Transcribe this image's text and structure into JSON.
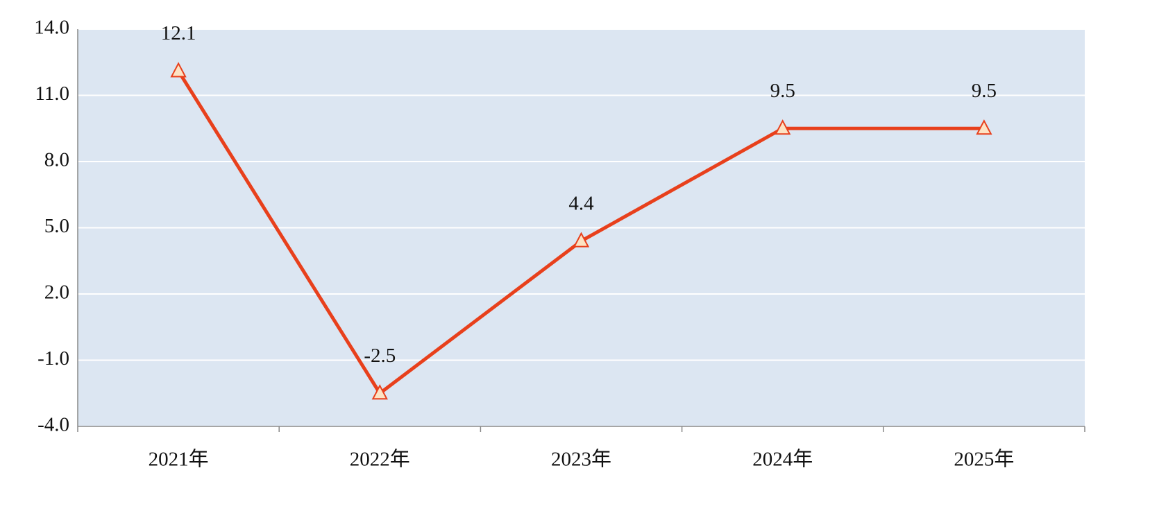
{
  "chart_data": {
    "type": "line",
    "categories": [
      "2021年",
      "2022年",
      "2023年",
      "2024年",
      "2025年"
    ],
    "values": [
      12.1,
      -2.5,
      4.4,
      9.5,
      9.5
    ],
    "color": "#e8401c",
    "marker": "triangle",
    "marker_fill": "#fde3c4",
    "ylim": [
      -4,
      14
    ],
    "yticks": [
      {
        "value": -4,
        "label": "-4.0"
      },
      {
        "value": -1,
        "label": "-1.0"
      },
      {
        "value": 2,
        "label": "2.0"
      },
      {
        "value": 5,
        "label": "5.0"
      },
      {
        "value": 8,
        "label": "8.0"
      },
      {
        "value": 11,
        "label": "11.0"
      },
      {
        "value": 14,
        "label": "14.0"
      }
    ],
    "grid": true,
    "plot_background": "#dce6f2"
  }
}
